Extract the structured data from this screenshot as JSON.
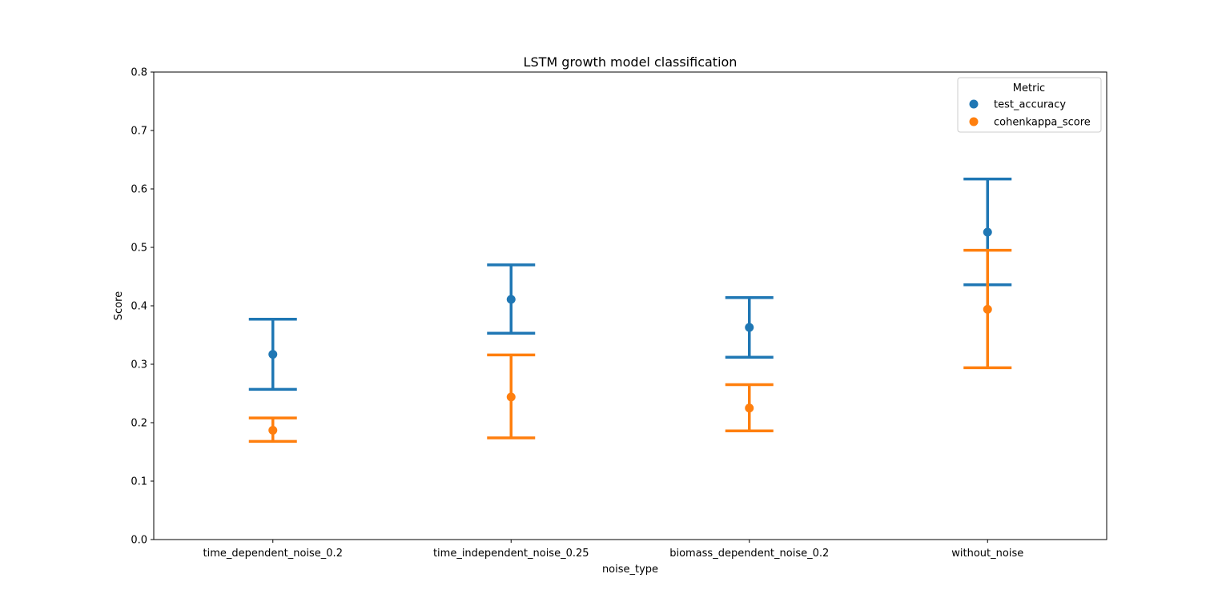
{
  "chart_data": {
    "type": "point",
    "title": "LSTM growth model classification",
    "xlabel": "noise_type",
    "ylabel": "Score",
    "ylim": [
      0,
      0.8
    ],
    "yticks": [
      "0.0",
      "0.1",
      "0.2",
      "0.3",
      "0.4",
      "0.5",
      "0.6",
      "0.7",
      "0.8"
    ],
    "categories": [
      "time_dependent_noise_0.2",
      "time_independent_noise_0.25",
      "biomass_dependent_noise_0.2",
      "without_noise"
    ],
    "legend": {
      "title": "Metric",
      "placement": "top-right"
    },
    "series": [
      {
        "name": "test_accuracy",
        "color": "#1f77b4",
        "values": [
          0.317,
          0.411,
          0.363,
          0.526
        ],
        "lower": [
          0.257,
          0.353,
          0.312,
          0.436
        ],
        "upper": [
          0.377,
          0.47,
          0.414,
          0.617
        ]
      },
      {
        "name": "cohenkappa_score",
        "color": "#ff7f0e",
        "values": [
          0.187,
          0.244,
          0.225,
          0.394
        ],
        "lower": [
          0.168,
          0.174,
          0.186,
          0.294
        ],
        "upper": [
          0.208,
          0.316,
          0.265,
          0.495
        ]
      }
    ]
  }
}
